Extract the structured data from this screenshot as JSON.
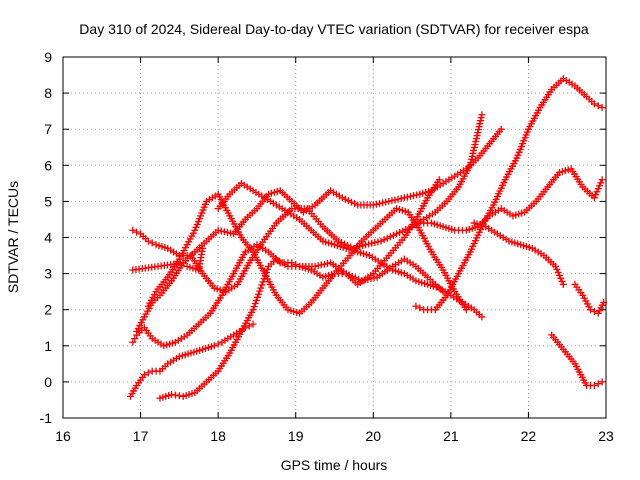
{
  "chart_data": {
    "type": "scatter",
    "title": "Day 310 of 2024, Sidereal Day-to-day VTEC variation (SDTVAR) for receiver espa",
    "xlabel": "GPS time / hours",
    "ylabel": "SDTVAR / TECUs",
    "xlim": [
      16,
      23
    ],
    "ylim": [
      -1,
      9
    ],
    "xticks": [
      "16",
      "17",
      "18",
      "19",
      "20",
      "21",
      "22",
      "23"
    ],
    "yticks": [
      "-1",
      "0",
      "1",
      "2",
      "3",
      "4",
      "5",
      "6",
      "7",
      "8",
      "9"
    ],
    "grid": true,
    "marker": "plus",
    "color": "#ff0000",
    "series": [
      {
        "x": [
          16.87,
          16.95,
          17.05,
          17.15,
          17.25,
          17.35,
          17.5,
          17.65,
          17.8,
          17.95,
          18.05,
          18.2,
          18.35,
          18.45
        ],
        "y": [
          -0.4,
          -0.1,
          0.2,
          0.3,
          0.3,
          0.5,
          0.7,
          0.8,
          0.9,
          1.0,
          1.1,
          1.3,
          1.5,
          1.6
        ]
      },
      {
        "x": [
          17.25,
          17.4,
          17.55,
          17.7,
          17.85,
          18.0,
          18.15,
          18.3,
          18.45,
          18.55,
          18.65,
          18.75,
          18.9,
          19.05,
          19.25,
          19.45,
          19.65,
          19.85,
          20.05,
          20.25,
          20.4,
          20.55,
          20.7,
          20.8,
          20.9
        ],
        "y": [
          -0.45,
          -0.35,
          -0.4,
          -0.3,
          0.0,
          0.3,
          0.8,
          1.4,
          2.0,
          2.6,
          3.2,
          3.4,
          3.2,
          3.2,
          3.2,
          3.3,
          3.0,
          2.8,
          2.9,
          3.2,
          3.4,
          3.2,
          2.9,
          2.7,
          2.5
        ]
      },
      {
        "x": [
          16.9,
          16.95,
          17.05,
          17.15,
          17.3,
          17.45,
          17.6,
          17.75,
          17.9,
          18.05,
          18.2,
          18.35,
          18.5,
          18.65,
          18.8,
          18.95,
          19.05,
          19.2,
          19.35,
          19.5,
          19.65,
          19.8,
          20.0,
          20.2,
          20.4,
          20.55,
          20.7,
          20.85
        ],
        "y": [
          1.1,
          1.3,
          1.5,
          1.2,
          1.0,
          1.1,
          1.3,
          1.6,
          1.9,
          2.4,
          3.0,
          3.6,
          3.8,
          3.6,
          3.3,
          3.3,
          3.2,
          3.1,
          2.9,
          3.0,
          3.0,
          2.7,
          3.0,
          3.5,
          4.0,
          4.5,
          5.1,
          5.6
        ]
      },
      {
        "x": [
          16.9,
          17.0,
          17.1,
          17.2,
          17.35,
          17.5,
          17.65,
          17.8,
          17.95,
          18.1,
          18.25,
          18.4,
          18.55,
          18.75,
          18.95,
          19.15,
          19.35,
          19.55,
          19.75,
          19.9,
          20.1,
          20.3,
          20.5,
          20.65,
          20.8,
          20.95,
          21.1,
          21.25,
          21.4
        ],
        "y": [
          4.2,
          4.1,
          3.9,
          3.8,
          3.7,
          3.5,
          3.5,
          3.0,
          2.6,
          2.5,
          2.7,
          3.3,
          3.8,
          4.4,
          4.8,
          4.8,
          4.3,
          3.9,
          3.7,
          3.8,
          3.9,
          4.1,
          4.3,
          4.5,
          4.7,
          5.0,
          5.4,
          6.0,
          7.4
        ]
      },
      {
        "x": [
          16.95,
          17.05,
          17.15,
          17.25,
          17.4,
          17.55,
          17.7,
          17.85,
          18.0,
          18.2,
          18.35,
          18.5,
          18.65,
          18.8,
          18.95,
          19.1,
          19.25,
          19.45,
          19.6,
          19.8,
          20.0,
          20.2,
          20.4,
          20.6,
          20.75,
          20.9,
          21.05,
          21.2,
          21.35,
          21.5,
          21.65
        ],
        "y": [
          1.4,
          1.8,
          2.2,
          2.4,
          2.8,
          3.3,
          3.6,
          3.9,
          4.2,
          4.1,
          4.5,
          4.8,
          5.2,
          5.3,
          5.0,
          4.7,
          4.9,
          5.3,
          5.1,
          4.9,
          4.9,
          5.0,
          5.1,
          5.2,
          5.3,
          5.5,
          5.7,
          5.9,
          6.2,
          6.6,
          7.0
        ]
      },
      {
        "x": [
          17.1,
          17.2,
          17.35,
          17.5,
          17.7,
          17.85,
          18.0,
          18.15,
          18.3,
          18.45,
          18.6,
          18.75,
          18.9,
          19.05,
          19.2,
          19.35,
          19.5,
          19.7,
          19.85,
          20.0,
          20.15,
          20.3,
          20.45,
          20.6,
          20.75,
          20.9,
          21.05,
          21.2
        ],
        "y": [
          2.1,
          2.5,
          2.9,
          3.4,
          4.2,
          5.0,
          5.2,
          4.6,
          4.0,
          3.6,
          3.0,
          2.4,
          2.0,
          1.9,
          2.2,
          2.6,
          3.0,
          3.5,
          3.9,
          4.2,
          4.5,
          4.8,
          4.7,
          4.2,
          3.6,
          3.1,
          2.5,
          2.0
        ]
      },
      {
        "x": [
          18.0,
          18.15,
          18.3,
          18.45,
          18.6,
          18.75,
          18.9,
          19.05,
          19.2,
          19.35,
          19.5,
          19.65,
          19.8,
          19.95,
          20.1,
          20.25,
          20.4,
          20.55,
          20.7,
          20.85,
          21.0,
          21.15,
          21.3,
          21.4
        ],
        "y": [
          4.8,
          5.2,
          5.5,
          5.3,
          5.1,
          4.9,
          4.7,
          4.5,
          4.2,
          3.9,
          3.8,
          3.7,
          3.6,
          3.5,
          3.3,
          3.1,
          3.0,
          2.8,
          2.7,
          2.6,
          2.4,
          2.2,
          2.0,
          1.8
        ]
      },
      {
        "x": [
          20.55,
          20.65,
          20.8,
          20.95,
          21.1,
          21.25,
          21.4,
          21.55,
          21.7,
          21.85,
          22.0,
          22.15,
          22.3,
          22.45,
          22.6,
          22.75,
          22.85,
          22.95
        ],
        "y": [
          2.1,
          2.0,
          2.0,
          2.4,
          3.0,
          3.6,
          4.3,
          4.9,
          5.6,
          6.2,
          7.0,
          7.6,
          8.1,
          8.4,
          8.2,
          7.9,
          7.7,
          7.6
        ]
      },
      {
        "x": [
          20.6,
          20.75,
          20.9,
          21.05,
          21.2,
          21.35,
          21.5,
          21.65,
          21.8,
          21.95,
          22.1,
          22.25,
          22.4,
          22.55,
          22.7,
          22.85,
          22.95
        ],
        "y": [
          4.4,
          4.4,
          4.3,
          4.2,
          4.2,
          4.3,
          4.6,
          4.8,
          4.6,
          4.7,
          5.0,
          5.4,
          5.8,
          5.9,
          5.4,
          5.1,
          5.6
        ]
      },
      {
        "x": [
          21.3,
          21.45,
          21.6,
          21.75,
          21.9,
          22.05,
          22.2,
          22.35,
          22.45
        ],
        "y": [
          4.4,
          4.3,
          4.1,
          3.9,
          3.8,
          3.7,
          3.5,
          3.2,
          2.7
        ]
      },
      {
        "x": [
          22.6,
          22.7,
          22.8,
          22.9,
          22.97
        ],
        "y": [
          2.7,
          2.4,
          2.0,
          1.9,
          2.2
        ]
      },
      {
        "x": [
          22.3,
          22.45,
          22.6,
          22.75,
          22.85,
          22.95
        ],
        "y": [
          1.3,
          0.9,
          0.5,
          -0.1,
          -0.1,
          0.0
        ]
      },
      {
        "x": [
          16.9,
          17.55,
          17.6,
          17.75,
          17.8
        ],
        "y": [
          3.1,
          3.3,
          3.2,
          3.1,
          3.7
        ]
      }
    ]
  }
}
